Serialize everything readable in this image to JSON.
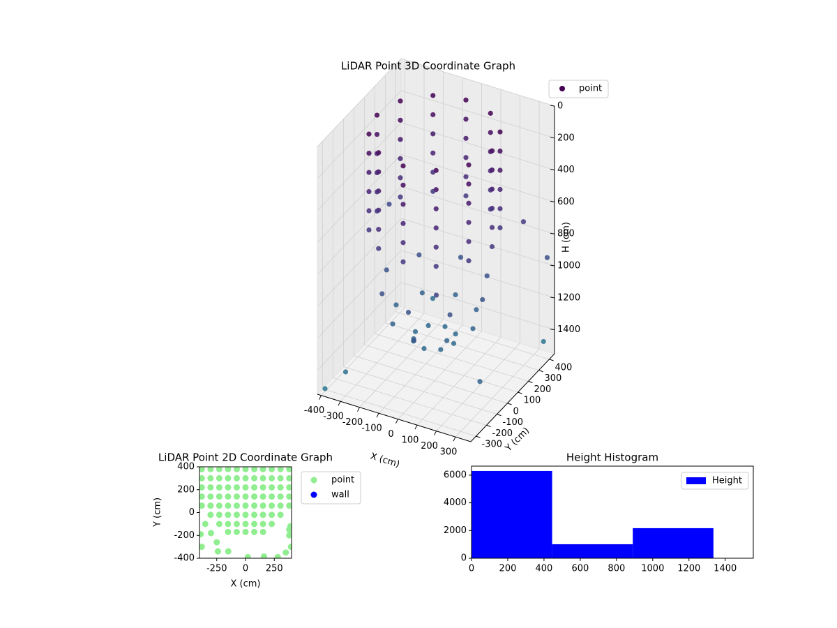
{
  "chart_data": [
    {
      "type": "scatter3d",
      "title": "LiDAR Point 3D Coordinate Graph",
      "xlabel": "X (cm)",
      "ylabel": "Y (cm)",
      "zlabel": "H (cm)",
      "xlim": [
        -420,
        380
      ],
      "ylim": [
        -350,
        450
      ],
      "zlim": [
        0,
        1550
      ],
      "zinvert": true,
      "xticks": [
        -400,
        -300,
        -200,
        -100,
        0,
        100,
        200,
        300
      ],
      "yticks": [
        -300,
        -200,
        -100,
        0,
        100,
        200,
        300,
        400
      ],
      "zticks": [
        0,
        200,
        400,
        600,
        800,
        1000,
        1200,
        1400
      ],
      "grid": true,
      "colormap": "viridis",
      "clim": [
        0,
        3000
      ],
      "legend": "outside upper right",
      "series": [
        {
          "name": "point",
          "color": "#440154",
          "x": [
            300,
            260,
            150,
            0,
            -150,
            -260,
            -300,
            -260,
            -150,
            0,
            150,
            260,
            300,
            260,
            150,
            0,
            -150,
            -260,
            -300,
            -260,
            -150,
            0,
            150,
            260,
            300,
            260,
            150,
            0,
            -150,
            -260,
            -300,
            -260,
            -150,
            0,
            150,
            260,
            300,
            260,
            150,
            0,
            -150,
            -260,
            -300,
            -260,
            -150,
            0,
            150,
            260,
            300,
            260,
            150,
            0,
            -150,
            -260,
            -300,
            -260,
            -150,
            0,
            150,
            260,
            300,
            260,
            150,
            0,
            -150,
            -260,
            -300,
            -260,
            -150,
            0,
            150,
            260,
            250,
            177,
            0,
            -177,
            -250,
            -177,
            0,
            177,
            200,
            141,
            0,
            -141,
            -200,
            -141,
            0,
            141,
            100,
            71,
            0,
            -71,
            -100,
            -71,
            0,
            71,
            -380,
            350,
            -400,
            400,
            200,
            -300,
            380,
            -200,
            100,
            300
          ],
          "y": [
            0,
            150,
            260,
            300,
            260,
            150,
            0,
            -150,
            -260,
            -300,
            -260,
            -150,
            0,
            150,
            260,
            300,
            260,
            150,
            0,
            -150,
            -260,
            -300,
            -260,
            -150,
            0,
            150,
            260,
            300,
            260,
            150,
            0,
            -150,
            -260,
            -300,
            -260,
            -150,
            0,
            150,
            260,
            300,
            260,
            150,
            0,
            -150,
            -260,
            -300,
            -260,
            -150,
            0,
            150,
            260,
            300,
            260,
            150,
            0,
            -150,
            -260,
            -300,
            -260,
            -150,
            0,
            150,
            260,
            300,
            260,
            150,
            0,
            -150,
            -260,
            -300,
            -260,
            -150,
            0,
            177,
            250,
            177,
            0,
            -177,
            -250,
            -177,
            0,
            141,
            200,
            141,
            0,
            -141,
            -200,
            -141,
            0,
            71,
            100,
            71,
            0,
            -71,
            -100,
            -71,
            -350,
            400,
            300,
            -300,
            -350,
            -300,
            380,
            350,
            -380,
            300
          ],
          "z": [
            0,
            0,
            0,
            0,
            0,
            0,
            0,
            0,
            0,
            0,
            0,
            0,
            120,
            120,
            120,
            120,
            120,
            120,
            120,
            120,
            120,
            120,
            120,
            120,
            240,
            240,
            240,
            240,
            240,
            240,
            240,
            240,
            240,
            240,
            240,
            240,
            360,
            360,
            360,
            360,
            360,
            360,
            360,
            360,
            360,
            360,
            360,
            360,
            480,
            480,
            480,
            480,
            480,
            480,
            480,
            480,
            480,
            480,
            480,
            480,
            600,
            600,
            600,
            600,
            600,
            600,
            600,
            600,
            600,
            600,
            600,
            600,
            950,
            950,
            950,
            950,
            950,
            950,
            950,
            950,
            1150,
            1150,
            1150,
            1150,
            1150,
            1150,
            1150,
            1150,
            1280,
            1280,
            1280,
            1280,
            1280,
            1280,
            1280,
            1280,
            1500,
            1450,
            800,
            1200,
            700,
            1400,
            900,
            1350,
            1000,
            650
          ]
        }
      ]
    },
    {
      "type": "scatter",
      "title": "LiDAR Point 2D Coordinate Graph",
      "xlabel": "X (cm)",
      "ylabel": "Y (cm)",
      "xlim": [
        -400,
        400
      ],
      "ylim": [
        -400,
        400
      ],
      "xticks": [
        -250,
        0,
        250
      ],
      "yticks": [
        -400,
        -200,
        0,
        200,
        400
      ],
      "legend": "outside upper right",
      "series": [
        {
          "name": "point",
          "color": "#90ee90",
          "x": [
            -380,
            -304,
            -228,
            -152,
            -76,
            0,
            76,
            152,
            228,
            304,
            380,
            -380,
            -304,
            -228,
            -152,
            -76,
            0,
            76,
            152,
            228,
            304,
            380,
            -380,
            -304,
            -228,
            -152,
            -76,
            0,
            76,
            152,
            228,
            304,
            380,
            -380,
            -304,
            -228,
            -152,
            -76,
            0,
            76,
            152,
            228,
            304,
            380,
            -380,
            -304,
            -228,
            -152,
            -76,
            0,
            76,
            152,
            228,
            304,
            380,
            -304,
            -228,
            -152,
            -76,
            0,
            76,
            152,
            228,
            304,
            -228,
            -152,
            -76,
            0,
            76,
            152,
            228,
            -152,
            -76,
            0,
            76,
            152,
            -350,
            -300,
            -250,
            -240,
            -150,
            -380,
            20,
            160,
            280,
            350,
            395,
            380,
            390,
            380,
            -390
          ],
          "y": [
            380,
            380,
            380,
            380,
            380,
            380,
            380,
            380,
            380,
            380,
            380,
            300,
            300,
            300,
            300,
            300,
            300,
            300,
            300,
            300,
            300,
            300,
            220,
            220,
            220,
            220,
            220,
            220,
            220,
            220,
            220,
            220,
            220,
            140,
            140,
            140,
            140,
            140,
            140,
            140,
            140,
            140,
            140,
            140,
            60,
            60,
            60,
            60,
            60,
            60,
            60,
            60,
            60,
            60,
            60,
            -20,
            -20,
            -20,
            -20,
            -20,
            -20,
            -20,
            -20,
            -20,
            -100,
            -100,
            -100,
            -100,
            -100,
            -100,
            -100,
            -170,
            -170,
            -170,
            -170,
            -170,
            -100,
            -180,
            -260,
            -340,
            -340,
            -300,
            -390,
            -385,
            -390,
            -350,
            -300,
            -200,
            -120,
            -150,
            -190
          ]
        },
        {
          "name": "wall",
          "color": "#0000ff",
          "x": [],
          "y": []
        }
      ]
    },
    {
      "type": "histogram",
      "title": "Height Histogram",
      "bins": [
        0,
        445,
        890,
        1335,
        1780
      ],
      "xlim": [
        0,
        1555
      ],
      "ylim": [
        0,
        6650
      ],
      "xticks": [
        0,
        200,
        400,
        600,
        800,
        1000,
        1200,
        1400
      ],
      "yticks": [
        0,
        2000,
        4000,
        6000
      ],
      "legend": "upper right",
      "series": [
        {
          "name": "Height",
          "color": "#0000ff",
          "values": [
            6300,
            1010,
            2170,
            25
          ]
        }
      ]
    }
  ]
}
